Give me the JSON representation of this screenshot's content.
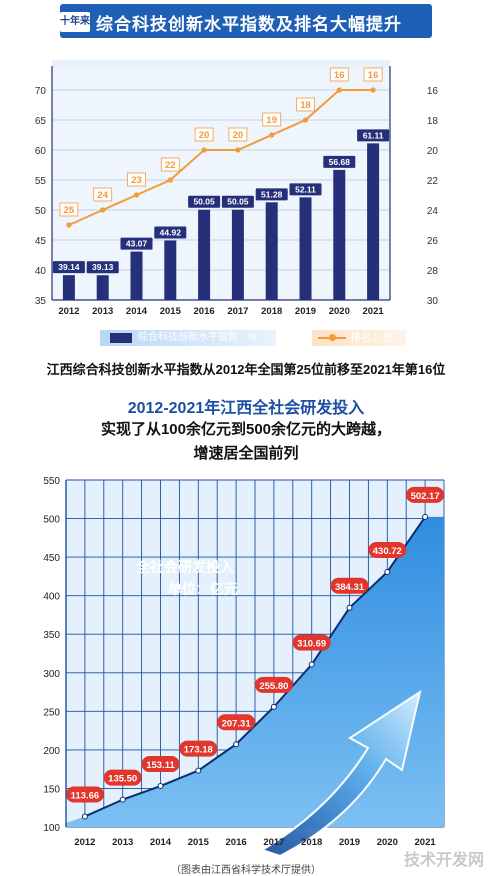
{
  "header": {
    "badge": "十年来",
    "title": "综合科技创新水平指数及排名大幅提升"
  },
  "legend": {
    "bar_label": "综合科技创新水平指数：%",
    "line_label": "排名：位"
  },
  "caption": "江西综合科技创新水平指数从2012年全国第25位前移至2021年第16位",
  "section2": {
    "title": "2012-2021年江西全社会研发投入",
    "subtitle1": "实现了从100余亿元到500余亿元的大跨越，",
    "subtitle2": "增速居全国前列"
  },
  "source": "（图表由江西省科学技术厅提供）",
  "watermark": "技术开发网",
  "colors": {
    "bar": "#26307a",
    "rank_line": "#f39a3b",
    "investment_area": "#4a9fe6",
    "label_bubble": "#e2352b",
    "header": "#1f5fb5"
  },
  "chart_data": [
    {
      "type": "bar",
      "categories": [
        "2012",
        "2013",
        "2014",
        "2015",
        "2016",
        "2017",
        "2018",
        "2019",
        "2020",
        "2021"
      ],
      "series": [
        {
          "name": "综合科技创新水平指数：%",
          "axis": "left",
          "values": [
            39.14,
            39.13,
            43.07,
            44.92,
            50.05,
            50.05,
            51.28,
            52.11,
            56.68,
            61.11
          ]
        },
        {
          "name": "排名：位",
          "type": "line",
          "axis": "right",
          "values": [
            25,
            24,
            23,
            22,
            20,
            20,
            19,
            18,
            16,
            16
          ]
        }
      ],
      "ylim_left": [
        35,
        70
      ],
      "yticks_left": [
        35,
        40,
        45,
        50,
        55,
        60,
        65,
        70
      ],
      "ylim_right_inverted": [
        30,
        16
      ],
      "yticks_right": [
        16,
        18,
        20,
        22,
        24,
        26,
        28,
        30
      ],
      "grid": true
    },
    {
      "type": "area",
      "categories": [
        "2012",
        "2013",
        "2014",
        "2015",
        "2016",
        "2017",
        "2018",
        "2019",
        "2020",
        "2021"
      ],
      "series": [
        {
          "name": "全社会研发投入",
          "values": [
            113.66,
            135.5,
            153.11,
            173.18,
            207.31,
            255.8,
            310.69,
            384.31,
            430.72,
            502.17
          ]
        }
      ],
      "inner_label": "全社会研发投入",
      "unit_label": "单位：亿元",
      "ylim": [
        100,
        550
      ],
      "yticks": [
        100,
        150,
        200,
        250,
        300,
        350,
        400,
        450,
        500,
        550
      ],
      "grid": true
    }
  ]
}
